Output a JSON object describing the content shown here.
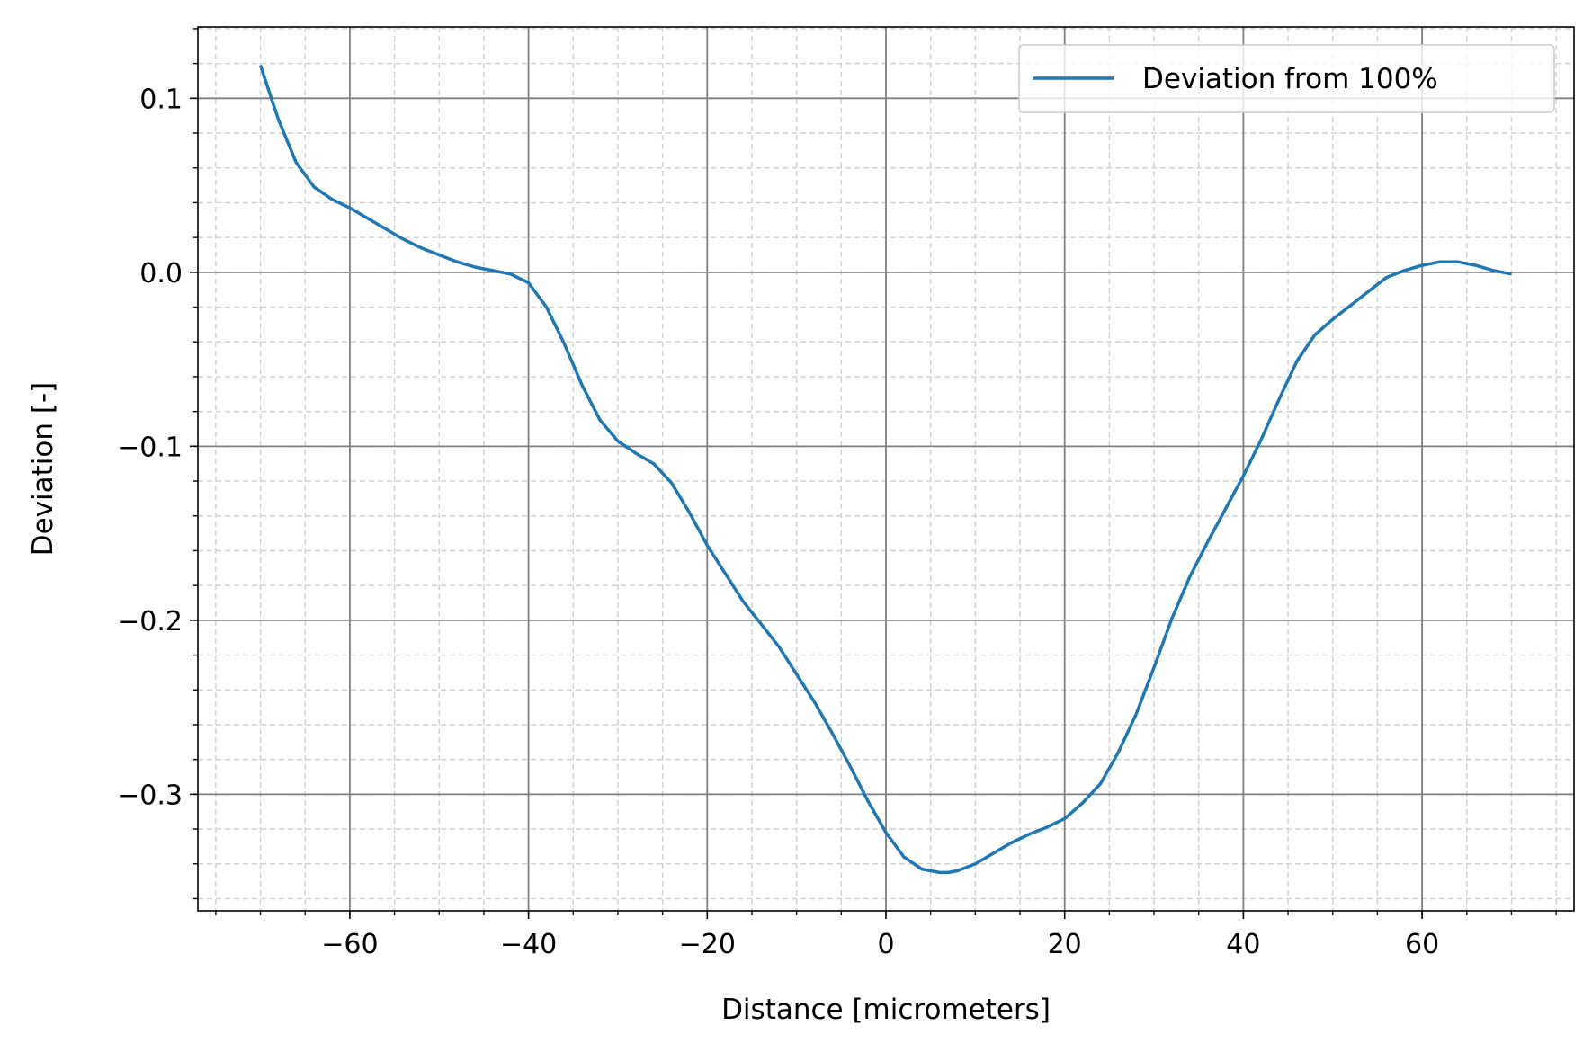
{
  "chart_data": {
    "type": "line",
    "title": "",
    "xlabel": "Distance [micrometers]",
    "ylabel": "Deviation [-]",
    "xlim": [
      -77,
      77
    ],
    "ylim": [
      -0.367,
      0.141
    ],
    "xticks": [
      -60,
      -40,
      -20,
      0,
      20,
      40,
      60
    ],
    "xtick_labels": [
      "−60",
      "−40",
      "−20",
      "0",
      "20",
      "40",
      "60"
    ],
    "yticks": [
      0.1,
      0.0,
      -0.1,
      -0.2,
      -0.3
    ],
    "ytick_labels": [
      "0.1",
      "0.0",
      "−0.1",
      "−0.2",
      "−0.3"
    ],
    "x_minor_step": 5,
    "y_minor_step": 0.02,
    "grid": {
      "major": true,
      "minor": true,
      "major_color": "#808080",
      "minor_color": "#d3d3d3",
      "minor_style": "dashed"
    },
    "legend": {
      "position": "top-right"
    },
    "series": [
      {
        "name": "Deviation from 100%",
        "color": "#1f77b4",
        "x": [
          -70,
          -68,
          -66,
          -64,
          -62,
          -60,
          -58,
          -56,
          -54,
          -52,
          -50,
          -48,
          -46,
          -44,
          -42,
          -40,
          -38,
          -36,
          -34,
          -32,
          -30,
          -28,
          -26,
          -24,
          -22,
          -20,
          -18,
          -16,
          -14,
          -12,
          -10,
          -8,
          -6,
          -4,
          -2,
          0,
          2,
          4,
          6,
          7,
          8,
          10,
          12,
          14,
          16,
          18,
          20,
          22,
          24,
          26,
          28,
          30,
          32,
          34,
          36,
          38,
          40,
          42,
          44,
          46,
          48,
          50,
          52,
          54,
          56,
          58,
          60,
          62,
          64,
          66,
          68,
          70
        ],
        "y": [
          0.119,
          0.088,
          0.063,
          0.049,
          0.042,
          0.037,
          0.031,
          0.025,
          0.019,
          0.014,
          0.01,
          0.006,
          0.003,
          0.001,
          -0.001,
          -0.006,
          -0.02,
          -0.041,
          -0.065,
          -0.085,
          -0.097,
          -0.104,
          -0.11,
          -0.121,
          -0.138,
          -0.157,
          -0.173,
          -0.189,
          -0.202,
          -0.215,
          -0.231,
          -0.247,
          -0.265,
          -0.284,
          -0.304,
          -0.322,
          -0.336,
          -0.343,
          -0.345,
          -0.345,
          -0.344,
          -0.34,
          -0.334,
          -0.328,
          -0.323,
          -0.319,
          -0.314,
          -0.305,
          -0.294,
          -0.276,
          -0.254,
          -0.227,
          -0.199,
          -0.175,
          -0.155,
          -0.136,
          -0.117,
          -0.096,
          -0.073,
          -0.051,
          -0.036,
          -0.027,
          -0.019,
          -0.011,
          -0.003,
          0.001,
          0.004,
          0.006,
          0.006,
          0.004,
          0.001,
          -0.001
        ]
      }
    ]
  }
}
